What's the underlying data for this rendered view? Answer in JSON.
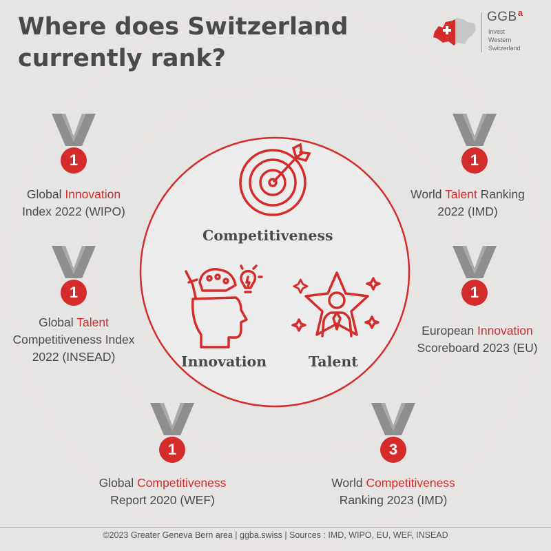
{
  "title": {
    "line1": "Where does Switzerland",
    "line2": "currently rank?"
  },
  "logo": {
    "brand": "GGB",
    "brand_sup": "a",
    "tagline": [
      "Invest",
      "Western",
      "Switzerland"
    ]
  },
  "pillars": {
    "top": "Competitiveness",
    "left": "Innovation",
    "right": "Talent"
  },
  "rankings": [
    {
      "rank": "1",
      "line1_pre": "Global ",
      "line1_hl": "Innovation",
      "line1_post": "",
      "line2": "Index 2022 (WIPO)",
      "line3": ""
    },
    {
      "rank": "1",
      "line1_pre": "Global ",
      "line1_hl": "Talent",
      "line1_post": "",
      "line2": "Competitiveness Index",
      "line3": "2022 (INSEAD)"
    },
    {
      "rank": "1",
      "line1_pre": "Global ",
      "line1_hl": "Competitiveness",
      "line1_post": "",
      "line2": "Report 2020 (WEF)",
      "line3": ""
    },
    {
      "rank": "1",
      "line1_pre": "World ",
      "line1_hl": "Talent",
      "line1_post": " Ranking",
      "line2": "2022 (IMD)",
      "line3": ""
    },
    {
      "rank": "1",
      "line1_pre": "European ",
      "line1_hl": "Innovation",
      "line1_post": "",
      "line2": "Scoreboard 2023 (EU)",
      "line3": ""
    },
    {
      "rank": "3",
      "line1_pre": "World ",
      "line1_hl": "Competitiveness",
      "line1_post": "",
      "line2": "Ranking 2023 (IMD)",
      "line3": ""
    }
  ],
  "footer": "©2023 Greater Geneva Bern area | ggba.swiss | Sources : IMD, WIPO, EU, WEF, INSEAD",
  "colors": {
    "accent": "#d42b2b",
    "ribbon": "#8e8e8e",
    "background": "#e6e5e4",
    "text": "#4a4a4a"
  },
  "icons": [
    "medal-icon",
    "target-icon",
    "head-idea-icon",
    "star-person-icon",
    "switzerland-map-icon"
  ]
}
